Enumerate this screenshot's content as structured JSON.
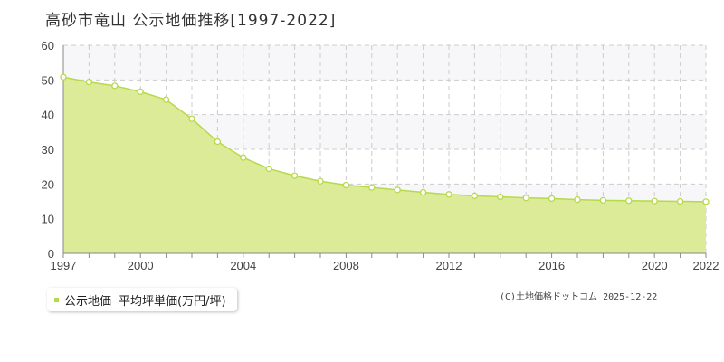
{
  "title": "高砂市竜山  公示地価推移[1997-2022]",
  "legend": {
    "label": "公示地価",
    "sublabel": "平均坪単価(万円/坪)"
  },
  "copyright": "(C)土地価格ドットコム 2025-12-22",
  "colors": {
    "fill": "#dbeb98",
    "line": "#b7d94c",
    "point_fill": "#ffffff",
    "grid": "#cccccc",
    "band": "#f7f7f9"
  },
  "chart_data": {
    "type": "area",
    "title": "高砂市竜山  公示地価推移[1997-2022]",
    "xlabel": "",
    "ylabel": "",
    "xlim": [
      1997,
      2022
    ],
    "ylim": [
      0,
      60
    ],
    "yticks": [
      0,
      10,
      20,
      30,
      40,
      50,
      60
    ],
    "xticks": [
      1997,
      2000,
      2004,
      2008,
      2012,
      2016,
      2020,
      2022
    ],
    "grid": true,
    "legend_position": "bottom-left",
    "series": [
      {
        "name": "公示地価 平均坪単価(万円/坪)",
        "x": [
          1997,
          1998,
          1999,
          2000,
          2001,
          2002,
          2003,
          2004,
          2005,
          2006,
          2007,
          2008,
          2009,
          2010,
          2011,
          2012,
          2013,
          2014,
          2015,
          2016,
          2017,
          2018,
          2019,
          2020,
          2021,
          2022
        ],
        "y": [
          50.8,
          49.4,
          48.3,
          46.6,
          44.3,
          38.8,
          32.2,
          27.6,
          24.4,
          22.4,
          20.8,
          19.7,
          19.0,
          18.3,
          17.6,
          17.0,
          16.6,
          16.3,
          16.0,
          15.8,
          15.5,
          15.3,
          15.2,
          15.1,
          15.0,
          14.9
        ]
      }
    ]
  }
}
